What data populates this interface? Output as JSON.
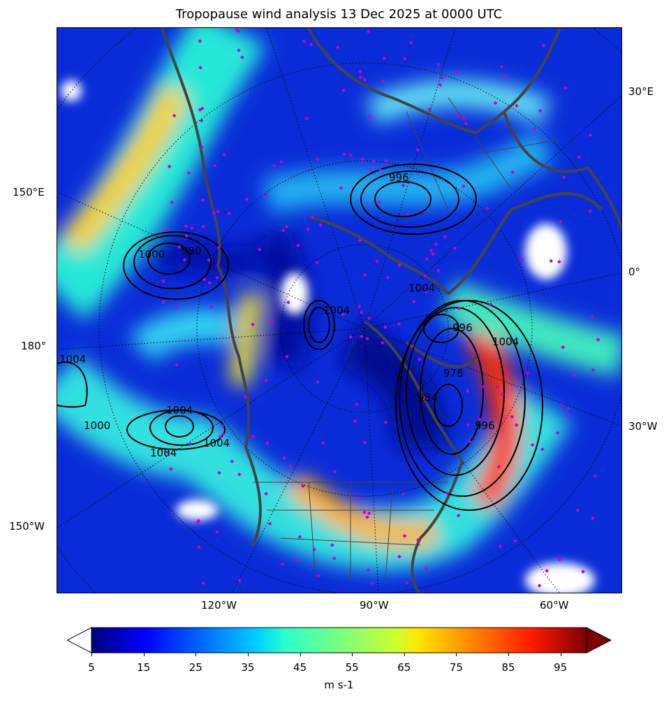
{
  "title": "Tropopause wind analysis 13 Dec 2025 at 0000 UTC",
  "longitude_labels": {
    "left": [
      "150°E",
      "180°",
      "150°W"
    ],
    "right": [
      "30°E",
      "0°",
      "30°W"
    ],
    "bottom": [
      "120°W",
      "90°W",
      "60°W"
    ]
  },
  "contour_labels": [
    "996",
    "1000",
    "1004",
    "1004",
    "1004",
    "1004",
    "1004",
    "1004",
    "1000",
    "1004",
    "976",
    "996",
    "996",
    "980",
    "984"
  ],
  "colorbar": {
    "colormap": "jet",
    "range": [
      5,
      100
    ],
    "extend": "both",
    "under_color": "#ffffff",
    "over_color": "#800000",
    "ticks": [
      "5",
      "15",
      "25",
      "35",
      "45",
      "55",
      "65",
      "75",
      "85",
      "95"
    ],
    "units": "m s-1"
  },
  "colors": {
    "coastline": "#444444",
    "station_marker": "#cc00cc",
    "contour": "#000000"
  }
}
